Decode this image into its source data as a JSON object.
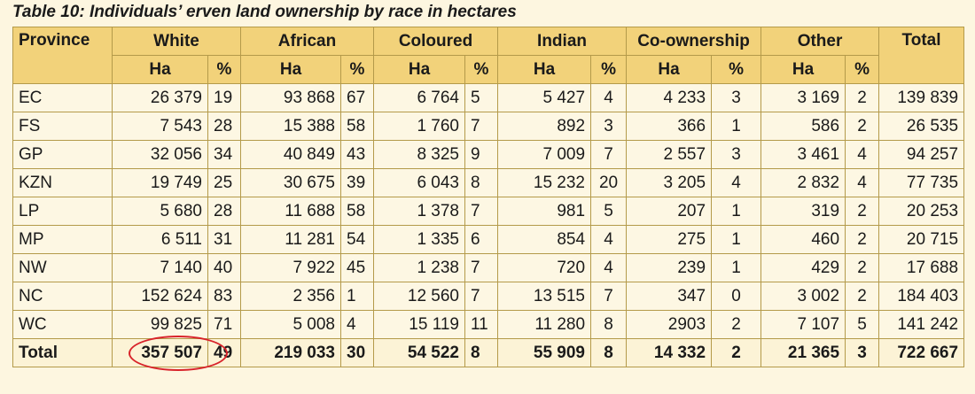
{
  "caption": "Table 10: Individuals’ erven land ownership by race in hectares",
  "header": {
    "province": "Province",
    "groups": [
      "White",
      "African",
      "Coloured",
      "Indian",
      "Co-ownership",
      "Other"
    ],
    "total": "Total",
    "ha": "Ha",
    "pct": "%"
  },
  "rows": [
    {
      "province": "EC",
      "white_ha": "26 379",
      "white_pct": "19",
      "african_ha": "93 868",
      "african_pct": "67",
      "coloured_ha": "6 764",
      "coloured_pct": "5",
      "indian_ha": "5 427",
      "indian_pct": "4",
      "co_ha": "4 233",
      "co_pct": "3",
      "other_ha": "3 169",
      "other_pct": "2",
      "total": "139 839"
    },
    {
      "province": "FS",
      "white_ha": "7 543",
      "white_pct": "28",
      "african_ha": "15 388",
      "african_pct": "58",
      "coloured_ha": "1 760",
      "coloured_pct": "7",
      "indian_ha": "892",
      "indian_pct": "3",
      "co_ha": "366",
      "co_pct": "1",
      "other_ha": "586",
      "other_pct": "2",
      "total": "26 535"
    },
    {
      "province": "GP",
      "white_ha": "32 056",
      "white_pct": "34",
      "african_ha": "40 849",
      "african_pct": "43",
      "coloured_ha": "8 325",
      "coloured_pct": "9",
      "indian_ha": "7 009",
      "indian_pct": "7",
      "co_ha": "2 557",
      "co_pct": "3",
      "other_ha": "3 461",
      "other_pct": "4",
      "total": "94 257"
    },
    {
      "province": "KZN",
      "white_ha": "19 749",
      "white_pct": "25",
      "african_ha": "30 675",
      "african_pct": "39",
      "coloured_ha": "6 043",
      "coloured_pct": "8",
      "indian_ha": "15 232",
      "indian_pct": "20",
      "co_ha": "3 205",
      "co_pct": "4",
      "other_ha": "2 832",
      "other_pct": "4",
      "total": "77 735"
    },
    {
      "province": "LP",
      "white_ha": "5 680",
      "white_pct": "28",
      "african_ha": "11 688",
      "african_pct": "58",
      "coloured_ha": "1 378",
      "coloured_pct": "7",
      "indian_ha": "981",
      "indian_pct": "5",
      "co_ha": "207",
      "co_pct": "1",
      "other_ha": "319",
      "other_pct": "2",
      "total": "20 253"
    },
    {
      "province": "MP",
      "white_ha": "6 511",
      "white_pct": "31",
      "african_ha": "11 281",
      "african_pct": "54",
      "coloured_ha": "1 335",
      "coloured_pct": "6",
      "indian_ha": "854",
      "indian_pct": "4",
      "co_ha": "275",
      "co_pct": "1",
      "other_ha": "460",
      "other_pct": "2",
      "total": "20 715"
    },
    {
      "province": "NW",
      "white_ha": "7 140",
      "white_pct": "40",
      "african_ha": "7 922",
      "african_pct": "45",
      "coloured_ha": "1 238",
      "coloured_pct": "7",
      "indian_ha": "720",
      "indian_pct": "4",
      "co_ha": "239",
      "co_pct": "1",
      "other_ha": "429",
      "other_pct": "2",
      "total": "17 688"
    },
    {
      "province": "NC",
      "white_ha": "152 624",
      "white_pct": "83",
      "african_ha": "2 356",
      "african_pct": "1",
      "coloured_ha": "12 560",
      "coloured_pct": "7",
      "indian_ha": "13 515",
      "indian_pct": "7",
      "co_ha": "347",
      "co_pct": "0",
      "other_ha": "3 002",
      "other_pct": "2",
      "total": "184 403"
    },
    {
      "province": "WC",
      "white_ha": "99 825",
      "white_pct": "71",
      "african_ha": "5 008",
      "african_pct": "4",
      "coloured_ha": "15 119",
      "coloured_pct": "11",
      "indian_ha": "11 280",
      "indian_pct": "8",
      "co_ha": "2903",
      "co_pct": "2",
      "other_ha": "7 107",
      "other_pct": "5",
      "total": "141 242"
    }
  ],
  "totals": {
    "label": "Total",
    "white_ha": "357 507",
    "white_pct": "49",
    "african_ha": "219 033",
    "african_pct": "30",
    "coloured_ha": "54 522",
    "coloured_pct": "8",
    "indian_ha": "55 909",
    "indian_pct": "8",
    "co_ha": "14 332",
    "co_pct": "2",
    "other_ha": "21 365",
    "other_pct": "3",
    "total": "722 667"
  },
  "colors": {
    "header_bg": "#f2d27a",
    "body_bg": "#fdf7e3",
    "border": "#b49a4a",
    "circle_annotation": "#d8232a"
  }
}
